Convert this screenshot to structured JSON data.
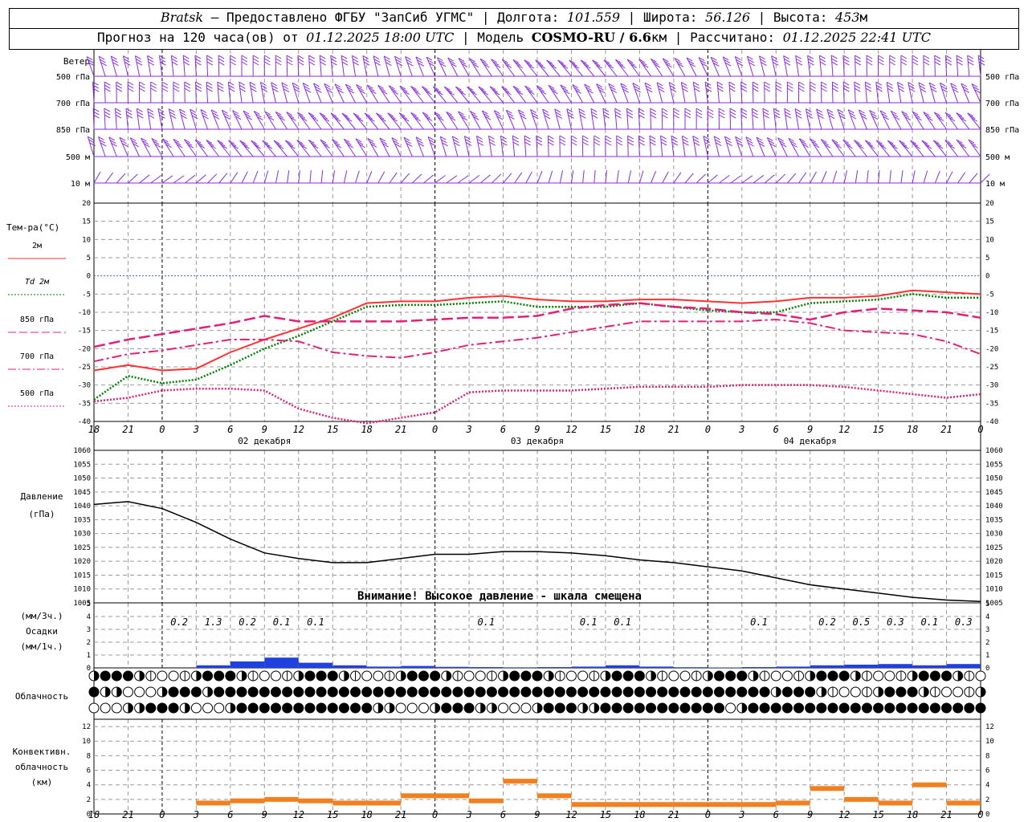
{
  "header": {
    "station": "Bratsk",
    "provider": " — Предоставлено ФГБУ \"ЗапСиб УГМС\" | Долгота: ",
    "lon": "101.559",
    "lat_label": " | Широта: ",
    "lat": "56.126",
    "alt_label": " | Высота: ",
    "alt": "453",
    "alt_unit": "м",
    "fc_label": "Прогноз на 120 часа(ов) от ",
    "fc_start": "01.12.2025 18:00 UTC",
    "model_label": " | Модель ",
    "model": "COSMO-RU / 6.6",
    "model_unit": "км",
    "calc_label": " | Рассчитано: ",
    "calc_time": "01.12.2025 22:41 UTC"
  },
  "wind_panel": {
    "title": "Ветер",
    "levels": [
      "500 гПа",
      "700 гПа",
      "850 гПа",
      "500 м",
      "10  м"
    ]
  },
  "temp_panel": {
    "title": "Тем-ра(°C)",
    "legend": [
      {
        "label": "2м",
        "color": "#ff3030",
        "dash": "solid"
      },
      {
        "label": "Td 2м",
        "color": "#008000",
        "dash": "dotted"
      },
      {
        "label": "850 гПа",
        "color": "#e0207a",
        "dash": "dashed"
      },
      {
        "label": "700 гПа",
        "color": "#e0207a",
        "dash": "dashdot"
      },
      {
        "label": "500 гПа",
        "color": "#e0207a",
        "dash": "dotted"
      }
    ],
    "ticks": [
      "20",
      "15",
      "10",
      "5",
      "0",
      "-5",
      "-10",
      "-15",
      "-20",
      "-25",
      "-30",
      "-35",
      "-40"
    ]
  },
  "time_axis": {
    "hour_labels": [
      "18",
      "21",
      "0",
      "3",
      "6",
      "9",
      "12",
      "15",
      "18",
      "21",
      "0",
      "3",
      "6",
      "9",
      "12",
      "15",
      "18",
      "21",
      "0",
      "3",
      "6",
      "9",
      "12",
      "15",
      "18",
      "21",
      "0"
    ],
    "date_labels": [
      "02 декабря",
      "03 декабря",
      "04 декабря"
    ]
  },
  "pressure_panel": {
    "title": "Давление",
    "unit": "(гПа)",
    "warning": "Внимание! Высокое давление - шкала смещена",
    "ticks": [
      "1060",
      "1055",
      "1050",
      "1045",
      "1040",
      "1035",
      "1030",
      "1025",
      "1020",
      "1015",
      "1010",
      "1005"
    ]
  },
  "precip_panel": {
    "unit3": "(мм/3ч.)",
    "title": "Осадки",
    "unit1": "(мм/1ч.)",
    "ticks": [
      "5",
      "4",
      "3",
      "2",
      "1",
      "0"
    ],
    "labels": [
      {
        "hour": 9,
        "text": "0.2"
      },
      {
        "hour": 12,
        "text": "1.3"
      },
      {
        "hour": 15,
        "text": "0.2"
      },
      {
        "hour": 18,
        "text": "0.1"
      },
      {
        "hour": 21,
        "text": "0.1"
      },
      {
        "hour": 36,
        "text": "0.1"
      },
      {
        "hour": 45,
        "text": "0.1"
      },
      {
        "hour": 48,
        "text": "0.1"
      },
      {
        "hour": 60,
        "text": "0.1"
      },
      {
        "hour": 66,
        "text": "0.2"
      },
      {
        "hour": 69,
        "text": "0.5"
      },
      {
        "hour": 72,
        "text": "0.3"
      },
      {
        "hour": 75,
        "text": "0.1"
      },
      {
        "hour": 78,
        "text": "0.3"
      }
    ]
  },
  "cloud_panel": {
    "title": "Облачность"
  },
  "conv_panel": {
    "title1": "Конвективн.",
    "title2": "облачность",
    "unit": "(км)",
    "ticks": [
      "12",
      "10",
      "8",
      "6",
      "4",
      "2",
      "0"
    ]
  },
  "chart_data": [
    {
      "type": "line",
      "name": "temperature",
      "x_hours_from_start": [
        0,
        3,
        6,
        9,
        12,
        15,
        18,
        21,
        24,
        27,
        30,
        33,
        36,
        39,
        42,
        45,
        48,
        51,
        54,
        57,
        60,
        63,
        66,
        69,
        72,
        75,
        78
      ],
      "ylim": [
        -40,
        20
      ],
      "series": [
        {
          "name": "2м",
          "values": [
            -26,
            -24.5,
            -26,
            -25.5,
            -21,
            -17.5,
            -14.5,
            -11.5,
            -7.5,
            -7,
            -7,
            -6,
            -5.5,
            -6.5,
            -7,
            -7,
            -6.5,
            -6.5,
            -7,
            -7.5,
            -7,
            -6,
            -6,
            -5.5,
            -4,
            -4.5,
            -5
          ]
        },
        {
          "name": "Td 2м",
          "values": [
            -34,
            -27.5,
            -29.5,
            -28.5,
            -24.5,
            -20,
            -16.5,
            -12.5,
            -8.5,
            -8,
            -8,
            -7.5,
            -7,
            -8.5,
            -8.5,
            -8.5,
            -7.5,
            -8.5,
            -9.5,
            -10,
            -10,
            -7.5,
            -7,
            -6.5,
            -5,
            -6,
            -6
          ]
        },
        {
          "name": "850 гПа",
          "values": [
            -19.5,
            -17.5,
            -16,
            -14.5,
            -13,
            -11,
            -12.5,
            -12.5,
            -12.5,
            -12.5,
            -12,
            -11.5,
            -11.5,
            -11,
            -9,
            -8,
            -7.5,
            -8.5,
            -9,
            -10,
            -10.5,
            -12,
            -10,
            -9,
            -9.5,
            -10,
            -11.5
          ]
        },
        {
          "name": "700 гПа",
          "values": [
            -23.5,
            -21.5,
            -20.5,
            -19,
            -17.5,
            -17.5,
            -18,
            -21,
            -22,
            -22.5,
            -21,
            -19,
            -18,
            -17,
            -15.5,
            -14,
            -12.5,
            -12.5,
            -12.5,
            -12.5,
            -12,
            -13,
            -15,
            -15.5,
            -16,
            -18,
            -21.5
          ]
        },
        {
          "name": "500 гПа",
          "values": [
            -34.5,
            -33.5,
            -31.5,
            -31,
            -31,
            -31.5,
            -36.5,
            -39,
            -40.5,
            -39,
            -37.5,
            -32,
            -31.5,
            -31.5,
            -31.5,
            -31,
            -30.5,
            -30.5,
            -30.5,
            -30,
            -30,
            -30,
            -30.5,
            -31.5,
            -32.5,
            -33.5,
            -32.5
          ]
        }
      ]
    },
    {
      "type": "line",
      "name": "pressure",
      "x_hours_from_start": [
        0,
        3,
        6,
        9,
        12,
        15,
        18,
        21,
        24,
        27,
        30,
        33,
        36,
        39,
        42,
        45,
        48,
        51,
        54,
        57,
        60,
        63,
        66,
        69,
        72,
        75,
        78
      ],
      "ylim": [
        1005,
        1060
      ],
      "series": [
        {
          "name": "Давление",
          "values": [
            1040.5,
            1041.5,
            1039,
            1034,
            1028,
            1023,
            1021,
            1019.5,
            1019.5,
            1021,
            1022.5,
            1022.5,
            1023.5,
            1023.5,
            1023,
            1022,
            1020.5,
            1019.5,
            1018,
            1016.5,
            1014,
            1011.5,
            1010,
            1008.5,
            1007,
            1006,
            1005.5
          ]
        }
      ]
    },
    {
      "type": "bar",
      "name": "precipitation_mm_per_1h",
      "x_hours_from_start": [
        12,
        15,
        18,
        21,
        24,
        27,
        30,
        33,
        36,
        39,
        42,
        45,
        48,
        51,
        54,
        57,
        60,
        63,
        66,
        69,
        72,
        75,
        78
      ],
      "ylim": [
        0,
        5
      ],
      "values": [
        0.2,
        0.5,
        0.8,
        0.4,
        0.2,
        0.1,
        0.15,
        0.08,
        0.06,
        0.04,
        0.06,
        0.1,
        0.2,
        0.1,
        0.05,
        0.03,
        0.06,
        0.1,
        0.2,
        0.25,
        0.3,
        0.2,
        0.3
      ]
    },
    {
      "type": "bar",
      "name": "convective_cloud_top_km",
      "x_hours_from_start": [
        12,
        15,
        18,
        21,
        24,
        27,
        30,
        33,
        36,
        39,
        42,
        45,
        48,
        51,
        54,
        57,
        60,
        63,
        66,
        69,
        72,
        75,
        78
      ],
      "ylim": [
        0,
        13
      ],
      "values": [
        1.5,
        1.8,
        2.0,
        1.8,
        1.5,
        1.5,
        2.5,
        2.5,
        1.8,
        4.5,
        2.5,
        1.3,
        1.3,
        1.3,
        1.3,
        1.3,
        1.3,
        1.5,
        3.5,
        2.0,
        1.5,
        4.0,
        1.5
      ]
    }
  ]
}
